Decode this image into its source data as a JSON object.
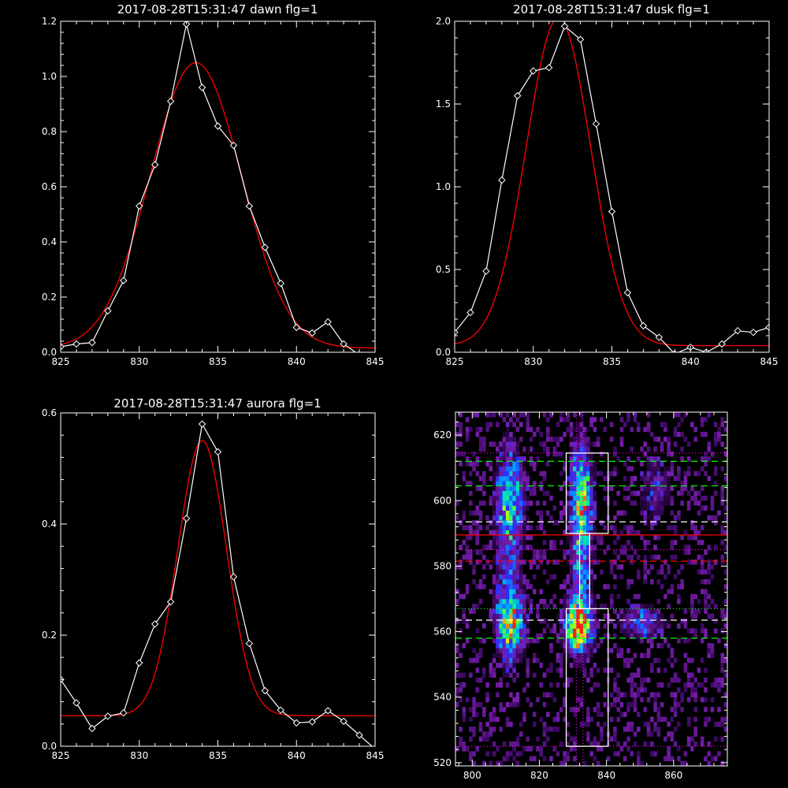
{
  "chart_data": [
    {
      "id": "dawn",
      "type": "line",
      "title": "2017-08-28T15:31:47 dawn flg=1",
      "xlim": [
        825,
        845
      ],
      "ylim": [
        0,
        1.2
      ],
      "xticks": [
        825,
        830,
        835,
        840,
        845
      ],
      "yticks": [
        0.0,
        0.2,
        0.4,
        0.6,
        0.8,
        1.0,
        1.2
      ],
      "ytick_labels": [
        "0.0",
        "0.2",
        "0.4",
        "0.6",
        "0.8",
        "1.0",
        "1.2"
      ],
      "series": [
        {
          "kind": "data",
          "color": "#ffffff",
          "marker": "diamond",
          "x": [
            825,
            826,
            827,
            828,
            829,
            830,
            831,
            832,
            833,
            834,
            835,
            836,
            837,
            838,
            839,
            840,
            841,
            842,
            843,
            844,
            845
          ],
          "y": [
            0.02,
            0.03,
            0.035,
            0.15,
            0.26,
            0.53,
            0.68,
            0.91,
            1.19,
            0.96,
            0.82,
            0.75,
            0.53,
            0.38,
            0.25,
            0.09,
            0.07,
            0.11,
            0.03,
            -0.01,
            -0.03
          ]
        },
        {
          "kind": "fit",
          "color": "#ff0000",
          "gaussian": {
            "amplitude": 1.035,
            "center": 833.6,
            "sigma": 2.9,
            "offset": 0.015
          }
        }
      ]
    },
    {
      "id": "dusk",
      "type": "line",
      "title": "2017-08-28T15:31:47 dusk flg=1",
      "xlim": [
        825,
        845
      ],
      "ylim": [
        0,
        2.0
      ],
      "xticks": [
        825,
        830,
        835,
        840,
        845
      ],
      "yticks": [
        0.0,
        0.5,
        1.0,
        1.5,
        2.0
      ],
      "ytick_labels": [
        "0.0",
        "0.5",
        "1.0",
        "1.5",
        "2.0"
      ],
      "series": [
        {
          "kind": "data",
          "color": "#ffffff",
          "marker": "diamond",
          "x": [
            825,
            826,
            827,
            828,
            829,
            830,
            831,
            832,
            833,
            834,
            835,
            836,
            837,
            838,
            839,
            840,
            841,
            842,
            843,
            844,
            845
          ],
          "y": [
            0.12,
            0.24,
            0.49,
            1.04,
            1.55,
            1.7,
            1.72,
            1.97,
            1.89,
            1.38,
            0.85,
            0.36,
            0.16,
            0.09,
            -0.01,
            0.03,
            0.0,
            0.05,
            0.13,
            0.12,
            0.15
          ]
        },
        {
          "kind": "fit",
          "color": "#ff0000",
          "gaussian": {
            "amplitude": 1.98,
            "center": 831.6,
            "sigma": 2.05,
            "offset": 0.04
          }
        }
      ]
    },
    {
      "id": "aurora",
      "type": "line",
      "title": "2017-08-28T15:31:47 aurora flg=1",
      "xlim": [
        825,
        845
      ],
      "ylim": [
        0,
        0.6
      ],
      "xticks": [
        825,
        830,
        835,
        840,
        845
      ],
      "yticks": [
        0.0,
        0.2,
        0.4,
        0.6
      ],
      "ytick_labels": [
        "0.0",
        "0.2",
        "0.4",
        "0.6"
      ],
      "series": [
        {
          "kind": "data",
          "color": "#ffffff",
          "marker": "diamond",
          "x": [
            825,
            826,
            827,
            828,
            829,
            830,
            831,
            832,
            833,
            834,
            835,
            836,
            837,
            838,
            839,
            840,
            841,
            842,
            843,
            844,
            845
          ],
          "y": [
            0.12,
            0.078,
            0.032,
            0.054,
            0.06,
            0.15,
            0.22,
            0.26,
            0.41,
            0.58,
            0.53,
            0.305,
            0.185,
            0.1,
            0.065,
            0.042,
            0.044,
            0.064,
            0.045,
            0.02,
            -0.005
          ]
        },
        {
          "kind": "fit",
          "color": "#ff0000",
          "gaussian": {
            "amplitude": 0.495,
            "center": 834.0,
            "sigma": 1.55,
            "offset": 0.055
          }
        }
      ]
    },
    {
      "id": "spectrogram",
      "type": "heatmap",
      "title": "",
      "xlim": [
        795,
        876
      ],
      "ylim": [
        519,
        627
      ],
      "xticks": [
        800,
        820,
        840,
        860
      ],
      "yticks": [
        520,
        540,
        560,
        580,
        600,
        620
      ],
      "colormap": [
        "#000000",
        "#3a0860",
        "#7a1fb0",
        "#2a2cff",
        "#00a0ff",
        "#00e0c0",
        "#40ff40",
        "#ffff00",
        "#ff2000"
      ],
      "hot_regions": [
        {
          "cx": 811,
          "cy": 562,
          "sx": 2.5,
          "sy": 6,
          "amp": 0.7
        },
        {
          "cx": 811,
          "cy": 600,
          "sx": 2.5,
          "sy": 9,
          "amp": 0.45
        },
        {
          "cx": 810,
          "cy": 580,
          "sx": 2.5,
          "sy": 20,
          "amp": 0.25
        },
        {
          "cx": 831,
          "cy": 561,
          "sx": 2.5,
          "sy": 5,
          "amp": 0.95
        },
        {
          "cx": 832,
          "cy": 601,
          "sx": 2.0,
          "sy": 10,
          "amp": 0.6
        },
        {
          "cx": 832,
          "cy": 580,
          "sx": 2.0,
          "sy": 14,
          "amp": 0.35
        },
        {
          "cx": 850,
          "cy": 562,
          "sx": 4,
          "sy": 3,
          "amp": 0.35
        },
        {
          "cx": 854,
          "cy": 603,
          "sx": 3,
          "sy": 6,
          "amp": 0.2
        }
      ],
      "boxes": [
        {
          "x0": 828,
          "x1": 840.5,
          "y0": 590,
          "y1": 614.5,
          "color": "#ffffff"
        },
        {
          "x0": 832,
          "x1": 835,
          "y0": 567,
          "y1": 590,
          "color": "#ffffff"
        },
        {
          "x0": 828,
          "x1": 840.5,
          "y0": 525,
          "y1": 567,
          "color": "#ffffff"
        }
      ],
      "hlines": [
        {
          "y": 614.5,
          "color": "#ff00ff",
          "dash": "dotted"
        },
        {
          "y": 612,
          "color": "#00ff00",
          "dash": "dashed"
        },
        {
          "y": 604.5,
          "color": "#00ff00",
          "dash": "dashed"
        },
        {
          "y": 593.5,
          "color": "#ffffff",
          "dash": "dashed"
        },
        {
          "y": 589.5,
          "color": "#ff0000",
          "dash": "solid"
        },
        {
          "y": 585,
          "color": "#ff00ff",
          "dash": "dotted"
        },
        {
          "y": 581.5,
          "color": "#ff0000",
          "dash": "dashed"
        },
        {
          "y": 567,
          "color": "#00ff00",
          "dash": "dotted"
        },
        {
          "y": 563.5,
          "color": "#ffffff",
          "dash": "dashed"
        },
        {
          "y": 558,
          "color": "#00ff00",
          "dash": "dashed"
        },
        {
          "y": 525,
          "color": "#ff00ff",
          "dash": "dotted"
        }
      ],
      "vlines": [
        {
          "x": 831,
          "color": "#ff00ff",
          "dash": "dotted"
        },
        {
          "x": 833,
          "color": "#ff00ff",
          "dash": "dotted"
        }
      ]
    }
  ]
}
